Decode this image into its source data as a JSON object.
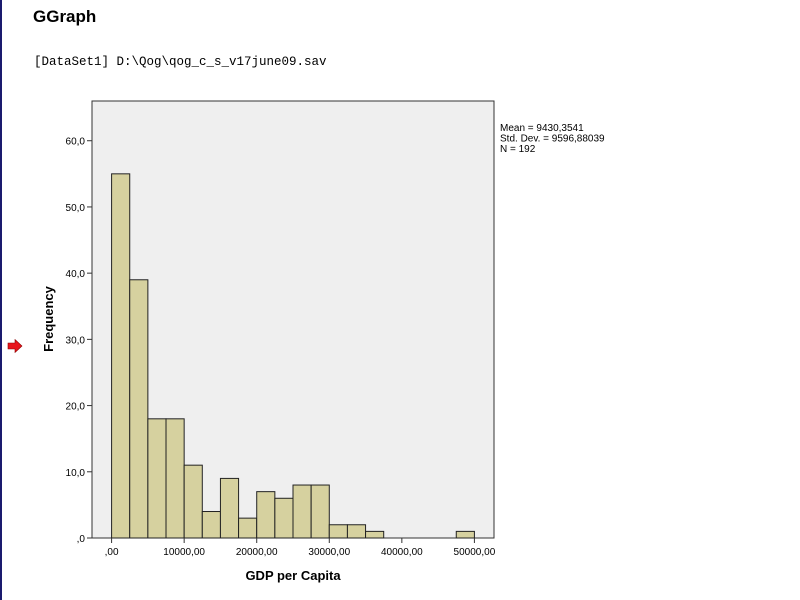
{
  "page": {
    "title": "GGraph",
    "dataset_line": "[DataSet1] D:\\Qog\\qog_c_s_v17june09.sav"
  },
  "icons": {
    "row_marker": "right-arrow-icon",
    "row_marker_color": "#e8141b"
  },
  "chart_data": {
    "type": "bar",
    "subtype": "histogram",
    "xlabel": "GDP per Capita",
    "ylabel": "Frequency",
    "bin_width": 2500,
    "bin_start": 0,
    "values": [
      55,
      39,
      18,
      18,
      11,
      4,
      9,
      3,
      7,
      6,
      8,
      8,
      2,
      2,
      1,
      0,
      0,
      0,
      0,
      1
    ],
    "xlim": [
      -2700,
      52700
    ],
    "ylim": [
      0,
      66
    ],
    "x_ticks": [
      0,
      10000,
      20000,
      30000,
      40000,
      50000
    ],
    "x_tick_labels": [
      ",00",
      "10000,00",
      "20000,00",
      "30000,00",
      "40000,00",
      "50000,00"
    ],
    "y_ticks": [
      0,
      10,
      20,
      30,
      40,
      50,
      60
    ],
    "y_tick_labels": [
      ",0",
      "10,0",
      "20,0",
      "30,0",
      "40,0",
      "50,0",
      "60,0"
    ],
    "stats": [
      "Mean = 9430,3541",
      "Std. Dev. = 9596,88039",
      "N = 192"
    ],
    "colors": {
      "bar_fill": "#d6d19f",
      "bar_stroke": "#222222",
      "plot_background": "#efefef",
      "frame": "#333333"
    },
    "grid": false
  }
}
